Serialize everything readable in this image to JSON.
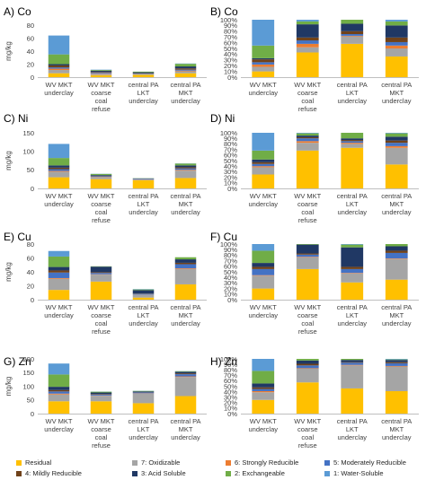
{
  "colors": {
    "Residual": "#FFC000",
    "7: Oxidizable": "#A5A5A5",
    "6: Strongly Reducible": "#ED7D31",
    "5: Moderately Reducible": "#4472C4",
    "4: Mildly Reducible": "#70421A",
    "3: Acid Soluble": "#203864",
    "2: Exchangeable": "#70AD47",
    "1: Water-Soluble": "#5B9BD5"
  },
  "legend": {
    "entries": [
      "Residual",
      "7: Oxidizable",
      "6: Strongly Reducible",
      "5: Moderately Reducible",
      "4: Mildly Reducible",
      "3: Acid Soluble",
      "2: Exchangeable",
      "1: Water-Soluble"
    ]
  },
  "chart_data": [
    {
      "type": "bar",
      "stacked": true,
      "title": "A) Co",
      "ylabel": "mg/kg",
      "ylim": [
        0,
        80
      ],
      "yticks": [
        0,
        20,
        40,
        60,
        80
      ],
      "ytick_labels": [
        "0",
        "20",
        "40",
        "60",
        "80"
      ],
      "categories": [
        "WV MKT underclay",
        "WV MKT coarse coal refuse",
        "central PA LKT underclay",
        "central PA MKT underclay"
      ],
      "series": [
        {
          "name": "Residual",
          "values": [
            6,
            3,
            3.5,
            6
          ]
        },
        {
          "name": "7: Oxidizable",
          "values": [
            5,
            2,
            1.5,
            3
          ]
        },
        {
          "name": "6: Strongly Reducible",
          "values": [
            2,
            0.8,
            0.2,
            1
          ]
        },
        {
          "name": "5: Moderately Reducible",
          "values": [
            2,
            1.2,
            0.3,
            1.5
          ]
        },
        {
          "name": "4: Mildly Reducible",
          "values": [
            3,
            1,
            0.5,
            2
          ]
        },
        {
          "name": "3: Acid Soluble",
          "values": [
            2,
            2,
            1.5,
            3
          ]
        },
        {
          "name": "2: Exchangeable",
          "values": [
            15,
            1,
            1,
            4
          ]
        },
        {
          "name": "1: Water-Soluble",
          "values": [
            29,
            0.5,
            0,
            0.5
          ]
        }
      ]
    },
    {
      "type": "bar",
      "stacked": true,
      "percent": true,
      "title": "B) Co",
      "ylim": [
        0,
        100
      ],
      "yticks": [
        0,
        10,
        20,
        30,
        40,
        50,
        60,
        70,
        80,
        90,
        100
      ],
      "ytick_labels": [
        "0%",
        "10%",
        "20%",
        "30%",
        "40%",
        "50%",
        "60%",
        "70%",
        "80%",
        "90%",
        "100%"
      ],
      "categories": [
        "WV MKT underclay",
        "WV MKT coarse coal refuse",
        "central PA LKT underclay",
        "central PA MKT underclay"
      ],
      "series": [
        {
          "name": "Residual",
          "values": [
            10,
            43,
            58,
            36
          ]
        },
        {
          "name": "7: Oxidizable",
          "values": [
            8,
            9,
            13,
            14
          ]
        },
        {
          "name": "6: Strongly Reducible",
          "values": [
            4,
            6,
            1,
            5
          ]
        },
        {
          "name": "5: Moderately Reducible",
          "values": [
            4,
            6,
            3,
            6
          ]
        },
        {
          "name": "4: Mildly Reducible",
          "values": [
            5,
            5,
            5,
            8
          ]
        },
        {
          "name": "3: Acid Soluble",
          "values": [
            2,
            23,
            13,
            21
          ]
        },
        {
          "name": "2: Exchangeable",
          "values": [
            22,
            5,
            7,
            7
          ]
        },
        {
          "name": "1: Water-Soluble",
          "values": [
            45,
            3,
            0,
            3
          ]
        }
      ]
    },
    {
      "type": "bar",
      "stacked": true,
      "title": "C) Ni",
      "ylabel": "mg/kg",
      "ylim": [
        0,
        150
      ],
      "yticks": [
        0,
        50,
        100,
        150
      ],
      "ytick_labels": [
        "0",
        "50",
        "100",
        "150"
      ],
      "categories": [
        "WV MKT underclay",
        "WV MKT coarse coal refuse",
        "central PA LKT underclay",
        "central PA MKT underclay"
      ],
      "series": [
        {
          "name": "Residual",
          "values": [
            30,
            25,
            22,
            28
          ]
        },
        {
          "name": "7: Oxidizable",
          "values": [
            15,
            5,
            2,
            20
          ]
        },
        {
          "name": "6: Strongly Reducible",
          "values": [
            2,
            1,
            0.5,
            2
          ]
        },
        {
          "name": "5: Moderately Reducible",
          "values": [
            5,
            2,
            1,
            4
          ]
        },
        {
          "name": "4: Mildly Reducible",
          "values": [
            4,
            1,
            0.5,
            3
          ]
        },
        {
          "name": "3: Acid Soluble",
          "values": [
            6,
            2,
            1,
            5
          ]
        },
        {
          "name": "2: Exchangeable",
          "values": [
            20,
            3,
            0.5,
            5
          ]
        },
        {
          "name": "1: Water-Soluble",
          "values": [
            38,
            0.5,
            0,
            0.5
          ]
        }
      ]
    },
    {
      "type": "bar",
      "stacked": true,
      "percent": true,
      "title": "D) Ni",
      "ylim": [
        0,
        100
      ],
      "yticks": [
        0,
        10,
        20,
        30,
        40,
        50,
        60,
        70,
        80,
        90,
        100
      ],
      "ytick_labels": [
        "0%",
        "10%",
        "20%",
        "30%",
        "40%",
        "50%",
        "60%",
        "70%",
        "80%",
        "90%",
        "100%"
      ],
      "categories": [
        "WV MKT underclay",
        "WV MKT coarse coal refuse",
        "central PA LKT underclay",
        "central PA MKT underclay"
      ],
      "series": [
        {
          "name": "Residual",
          "values": [
            25,
            68,
            73,
            43
          ]
        },
        {
          "name": "7: Oxidizable",
          "values": [
            13,
            14,
            7,
            30
          ]
        },
        {
          "name": "6: Strongly Reducible",
          "values": [
            2,
            3,
            2,
            3
          ]
        },
        {
          "name": "5: Moderately Reducible",
          "values": [
            4,
            5,
            3,
            6
          ]
        },
        {
          "name": "4: Mildly Reducible",
          "values": [
            3,
            2,
            2,
            4
          ]
        },
        {
          "name": "3: Acid Soluble",
          "values": [
            5,
            3,
            3,
            7
          ]
        },
        {
          "name": "2: Exchangeable",
          "values": [
            16,
            4,
            10,
            6
          ]
        },
        {
          "name": "1: Water-Soluble",
          "values": [
            32,
            1,
            0,
            1
          ]
        }
      ]
    },
    {
      "type": "bar",
      "stacked": true,
      "title": "E) Cu",
      "ylabel": "mg/kg",
      "ylim": [
        0,
        80
      ],
      "yticks": [
        0,
        20,
        40,
        60,
        80
      ],
      "ytick_labels": [
        "0",
        "20",
        "40",
        "60",
        "80"
      ],
      "categories": [
        "WV MKT underclay",
        "WV MKT coarse coal refuse",
        "central PA LKT underclay",
        "central PA MKT underclay"
      ],
      "series": [
        {
          "name": "Residual",
          "values": [
            14,
            26,
            3,
            22
          ]
        },
        {
          "name": "7: Oxidizable",
          "values": [
            16,
            10,
            4,
            22
          ]
        },
        {
          "name": "6: Strongly Reducible",
          "values": [
            1,
            0.5,
            0.2,
            1
          ]
        },
        {
          "name": "5: Moderately Reducible",
          "values": [
            8,
            2,
            1,
            6
          ]
        },
        {
          "name": "4: Mildly Reducible",
          "values": [
            3,
            1,
            0.5,
            2
          ]
        },
        {
          "name": "3: Acid Soluble",
          "values": [
            5,
            8,
            5,
            5
          ]
        },
        {
          "name": "2: Exchangeable",
          "values": [
            15,
            0.5,
            1,
            3
          ]
        },
        {
          "name": "1: Water-Soluble",
          "values": [
            8,
            0,
            0.5,
            0
          ]
        }
      ]
    },
    {
      "type": "bar",
      "stacked": true,
      "percent": true,
      "title": "F) Cu",
      "ylim": [
        0,
        100
      ],
      "yticks": [
        0,
        10,
        20,
        30,
        40,
        50,
        60,
        70,
        80,
        90,
        100
      ],
      "ytick_labels": [
        "0%",
        "10%",
        "20%",
        "30%",
        "40%",
        "50%",
        "60%",
        "70%",
        "80%",
        "90%",
        "100%"
      ],
      "categories": [
        "WV MKT underclay",
        "WV MKT coarse coal refuse",
        "central PA LKT underclay",
        "central PA MKT underclay"
      ],
      "series": [
        {
          "name": "Residual",
          "values": [
            20,
            55,
            31,
            36
          ]
        },
        {
          "name": "7: Oxidizable",
          "values": [
            23,
            21,
            16,
            37
          ]
        },
        {
          "name": "6: Strongly Reducible",
          "values": [
            1,
            1,
            1,
            1
          ]
        },
        {
          "name": "5: Moderately Reducible",
          "values": [
            11,
            4,
            7,
            10
          ]
        },
        {
          "name": "4: Mildly Reducible",
          "values": [
            4,
            2,
            4,
            4
          ]
        },
        {
          "name": "3: Acid Soluble",
          "values": [
            7,
            16,
            35,
            8
          ]
        },
        {
          "name": "2: Exchangeable",
          "values": [
            22,
            1,
            5,
            4
          ]
        },
        {
          "name": "1: Water-Soluble",
          "values": [
            12,
            0,
            1,
            0
          ]
        }
      ]
    },
    {
      "type": "bar",
      "stacked": true,
      "title": "G) Zn",
      "ylabel": "mg/kg",
      "ylim": [
        0,
        200
      ],
      "yticks": [
        0,
        50,
        100,
        150,
        200
      ],
      "ytick_labels": [
        "0",
        "50",
        "100",
        "150",
        "200"
      ],
      "categories": [
        "WV MKT underclay",
        "WV MKT coarse coal refuse",
        "central PA LKT underclay",
        "central PA MKT underclay"
      ],
      "series": [
        {
          "name": "Residual",
          "values": [
            45,
            45,
            38,
            64
          ]
        },
        {
          "name": "7: Oxidizable",
          "values": [
            25,
            20,
            35,
            70
          ]
        },
        {
          "name": "6: Strongly Reducible",
          "values": [
            3,
            1,
            1,
            2
          ]
        },
        {
          "name": "5: Moderately Reducible",
          "values": [
            8,
            4,
            3,
            8
          ]
        },
        {
          "name": "4: Mildly Reducible",
          "values": [
            5,
            2,
            1,
            3
          ]
        },
        {
          "name": "3: Acid Soluble",
          "values": [
            12,
            5,
            3,
            6
          ]
        },
        {
          "name": "2: Exchangeable",
          "values": [
            45,
            3,
            2,
            2
          ]
        },
        {
          "name": "1: Water-Soluble",
          "values": [
            40,
            0.5,
            0.5,
            0.5
          ]
        }
      ]
    },
    {
      "type": "bar",
      "stacked": true,
      "percent": true,
      "title": "H) Zn",
      "ylim": [
        0,
        100
      ],
      "yticks": [
        0,
        10,
        20,
        30,
        40,
        50,
        60,
        70,
        80,
        90,
        100
      ],
      "ytick_labels": [
        "0%",
        "10%",
        "20%",
        "30%",
        "40%",
        "50%",
        "60%",
        "70%",
        "80%",
        "90%",
        "100%"
      ],
      "categories": [
        "WV MKT underclay",
        "WV MKT coarse coal refuse",
        "central PA LKT underclay",
        "central PA MKT underclay"
      ],
      "series": [
        {
          "name": "Residual",
          "values": [
            25,
            57,
            46,
            41
          ]
        },
        {
          "name": "7: Oxidizable",
          "values": [
            14,
            25,
            42,
            45
          ]
        },
        {
          "name": "6: Strongly Reducible",
          "values": [
            2,
            1,
            1,
            1
          ]
        },
        {
          "name": "5: Moderately Reducible",
          "values": [
            4,
            5,
            4,
            5
          ]
        },
        {
          "name": "4: Mildly Reducible",
          "values": [
            3,
            3,
            1,
            2
          ]
        },
        {
          "name": "3: Acid Soluble",
          "values": [
            7,
            6,
            4,
            4
          ]
        },
        {
          "name": "2: Exchangeable",
          "values": [
            23,
            3,
            2,
            1
          ]
        },
        {
          "name": "1: Water-Soluble",
          "values": [
            22,
            0,
            0,
            1
          ]
        }
      ]
    }
  ]
}
